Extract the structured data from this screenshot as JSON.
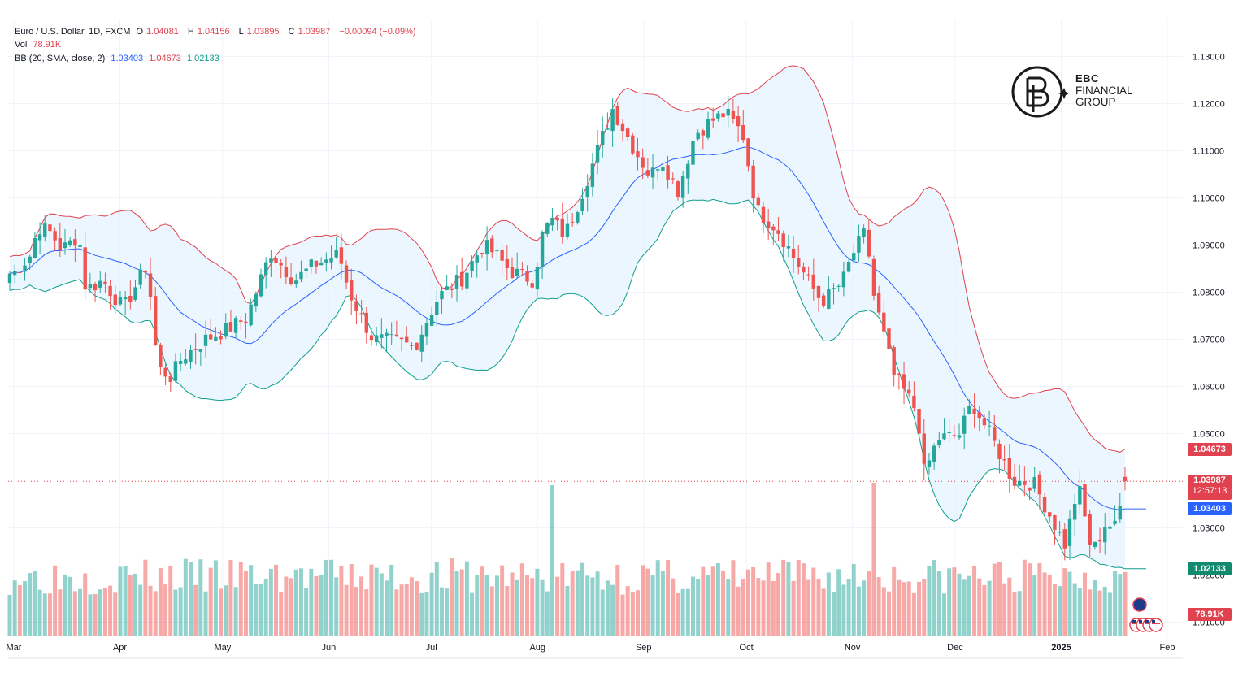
{
  "header": {
    "symbol": "Euro / U.S. Dollar, 1D, FXCM",
    "o_label": "O",
    "o_value": "1.04081",
    "h_label": "H",
    "h_value": "1.04156",
    "l_label": "L",
    "l_value": "1.03895",
    "c_label": "C",
    "c_value": "1.03987",
    "change": "−0.00094 (−0.09%)",
    "vol_label": "Vol",
    "vol_value": "78.91K",
    "bb_label": "BB (20, SMA, close, 2)",
    "bb_basis": "1.03403",
    "bb_upper": "1.04673",
    "bb_lower": "1.02133"
  },
  "logo": {
    "line1": "EBC",
    "line2": "FINANCIAL",
    "line3": "GROUP"
  },
  "price_tags": {
    "upper": "1.04673",
    "last": "1.03987",
    "countdown": "12:57:13",
    "basis": "1.03403",
    "lower": "1.02133",
    "volume": "78.91K"
  },
  "colors": {
    "up": "#26a69a",
    "down": "#ef5350",
    "bb_upper": "#e0424f",
    "bb_basis": "#2962ff",
    "bb_lower": "#0e9e8a",
    "bb_fill": "#e3f2fd"
  },
  "chart_data": {
    "type": "candlestick",
    "title": "Euro / U.S. Dollar, 1D, FXCM",
    "y_axis_ticks": [
      "1.13000",
      "1.12000",
      "1.11000",
      "1.10000",
      "1.09000",
      "1.08000",
      "1.07000",
      "1.06000",
      "1.05000",
      "1.03000",
      "1.02000",
      "1.01000"
    ],
    "x_axis_ticks": [
      "Mar",
      "Apr",
      "May",
      "Jun",
      "Jul",
      "Aug",
      "Sep",
      "Oct",
      "Nov",
      "Dec",
      "2025",
      "Feb"
    ],
    "ylim": [
      1.0095,
      1.1335
    ],
    "grid": true,
    "close_path": [
      {
        "date": "2024-03-01",
        "close": 1.084
      },
      {
        "date": "2024-03-06",
        "close": 1.088
      },
      {
        "date": "2024-03-08",
        "close": 1.094
      },
      {
        "date": "2024-03-12",
        "close": 1.0925
      },
      {
        "date": "2024-03-15",
        "close": 1.089
      },
      {
        "date": "2024-03-20",
        "close": 1.092
      },
      {
        "date": "2024-03-22",
        "close": 1.0805
      },
      {
        "date": "2024-03-27",
        "close": 1.0825
      },
      {
        "date": "2024-04-02",
        "close": 1.0765
      },
      {
        "date": "2024-04-09",
        "close": 1.086
      },
      {
        "date": "2024-04-12",
        "close": 1.064
      },
      {
        "date": "2024-04-16",
        "close": 1.062
      },
      {
        "date": "2024-04-19",
        "close": 1.066
      },
      {
        "date": "2024-04-26",
        "close": 1.07
      },
      {
        "date": "2024-05-02",
        "close": 1.072
      },
      {
        "date": "2024-05-08",
        "close": 1.0745
      },
      {
        "date": "2024-05-15",
        "close": 1.0885
      },
      {
        "date": "2024-05-22",
        "close": 1.0825
      },
      {
        "date": "2024-05-28",
        "close": 1.086
      },
      {
        "date": "2024-06-04",
        "close": 1.088
      },
      {
        "date": "2024-06-07",
        "close": 1.08
      },
      {
        "date": "2024-06-11",
        "close": 1.074
      },
      {
        "date": "2024-06-14",
        "close": 1.07
      },
      {
        "date": "2024-06-21",
        "close": 1.0695
      },
      {
        "date": "2024-06-26",
        "close": 1.0683
      },
      {
        "date": "2024-07-03",
        "close": 1.079
      },
      {
        "date": "2024-07-10",
        "close": 1.083
      },
      {
        "date": "2024-07-16",
        "close": 1.09
      },
      {
        "date": "2024-07-19",
        "close": 1.0885
      },
      {
        "date": "2024-07-24",
        "close": 1.0845
      },
      {
        "date": "2024-07-31",
        "close": 1.0825
      },
      {
        "date": "2024-08-02",
        "close": 1.0915
      },
      {
        "date": "2024-08-05",
        "close": 1.0955
      },
      {
        "date": "2024-08-09",
        "close": 1.092
      },
      {
        "date": "2024-08-14",
        "close": 1.101
      },
      {
        "date": "2024-08-20",
        "close": 1.113
      },
      {
        "date": "2024-08-23",
        "close": 1.119
      },
      {
        "date": "2024-08-28",
        "close": 1.112
      },
      {
        "date": "2024-09-03",
        "close": 1.1045
      },
      {
        "date": "2024-09-06",
        "close": 1.1085
      },
      {
        "date": "2024-09-11",
        "close": 1.1015
      },
      {
        "date": "2024-09-16",
        "close": 1.1135
      },
      {
        "date": "2024-09-20",
        "close": 1.116
      },
      {
        "date": "2024-09-25",
        "close": 1.118
      },
      {
        "date": "2024-09-30",
        "close": 1.1135
      },
      {
        "date": "2024-10-04",
        "close": 1.0975
      },
      {
        "date": "2024-10-10",
        "close": 1.0935
      },
      {
        "date": "2024-10-16",
        "close": 1.086
      },
      {
        "date": "2024-10-23",
        "close": 1.078
      },
      {
        "date": "2024-10-29",
        "close": 1.082
      },
      {
        "date": "2024-11-01",
        "close": 1.088
      },
      {
        "date": "2024-11-05",
        "close": 1.093
      },
      {
        "date": "2024-11-07",
        "close": 1.08
      },
      {
        "date": "2024-11-13",
        "close": 1.0625
      },
      {
        "date": "2024-11-20",
        "close": 1.0545
      },
      {
        "date": "2024-11-22",
        "close": 1.0415
      },
      {
        "date": "2024-11-26",
        "close": 1.049
      },
      {
        "date": "2024-12-02",
        "close": 1.0495
      },
      {
        "date": "2024-12-06",
        "close": 1.0565
      },
      {
        "date": "2024-12-11",
        "close": 1.05
      },
      {
        "date": "2024-12-18",
        "close": 1.04
      },
      {
        "date": "2024-12-24",
        "close": 1.0395
      },
      {
        "date": "2025-01-02",
        "close": 1.0265
      },
      {
        "date": "2025-01-06",
        "close": 1.039
      },
      {
        "date": "2025-01-10",
        "close": 1.0245
      },
      {
        "date": "2025-01-14",
        "close": 1.031
      },
      {
        "date": "2025-01-17",
        "close": 1.03
      },
      {
        "date": "2025-01-20",
        "close": 1.0415
      },
      {
        "date": "2025-01-21",
        "close": 1.0399
      }
    ],
    "bollinger": {
      "upper_end": 1.04673,
      "basis_end": 1.03403,
      "lower_end": 1.02133
    },
    "volume": {
      "last": "78.91K"
    }
  }
}
